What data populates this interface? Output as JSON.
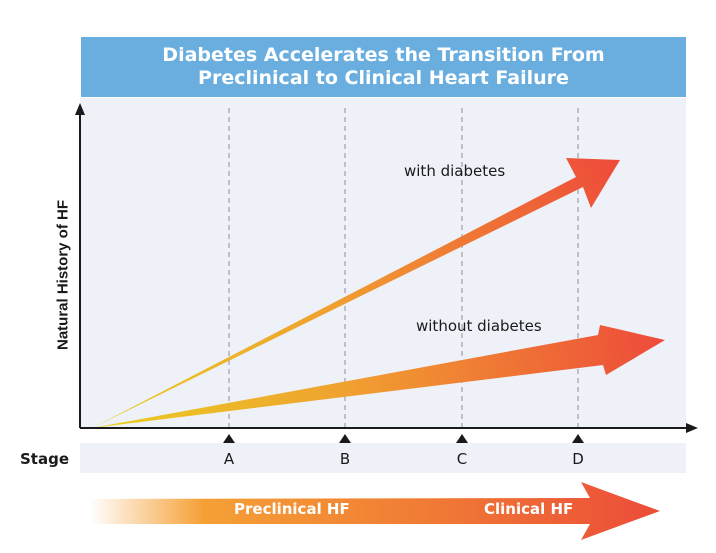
{
  "title": "Diabetes Accelerates the Transition From\nPreclinical to Clinical Heart Failure",
  "y_axis_label": "Natural History of HF",
  "stage_label": "Stage",
  "stages": [
    "A",
    "B",
    "C",
    "D"
  ],
  "arrows": {
    "with_diabetes": "with diabetes",
    "without_diabetes": "without diabetes"
  },
  "bottom_arrow": {
    "preclinical": "Preclinical HF",
    "clinical": "Clinical HF"
  },
  "colors": {
    "banner": "#6aaee0",
    "plot_bg": "#eef2f8",
    "arrow_start": "#e8d020",
    "arrow_end": "#ee4a3a"
  }
}
